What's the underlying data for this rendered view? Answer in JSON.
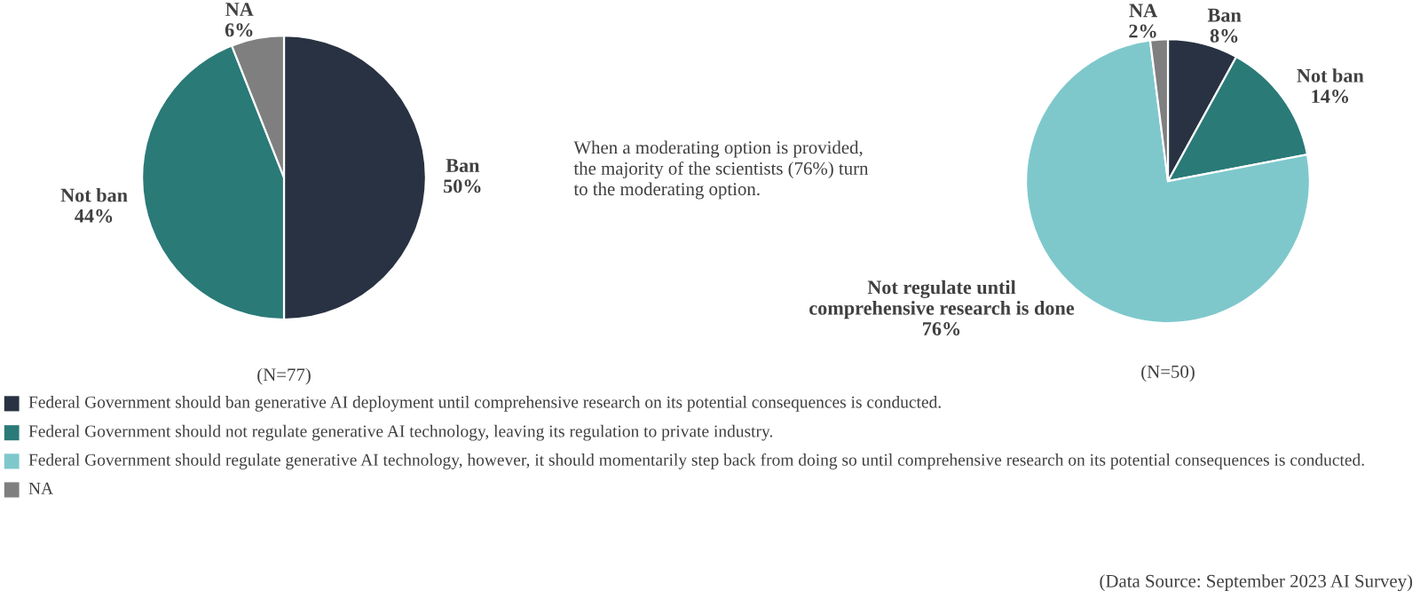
{
  "chart_data": [
    {
      "type": "pie",
      "categories": [
        "Ban",
        "Not ban",
        "NA"
      ],
      "values": [
        50,
        44,
        6
      ],
      "value_labels": [
        "50%",
        "44%",
        "6%"
      ],
      "colors": [
        "#283242",
        "#2a7a78",
        "#7f7f7f"
      ],
      "annotations": [
        "(N=77)"
      ]
    },
    {
      "type": "pie",
      "categories": [
        "Ban",
        "Not ban",
        "Not regulate until\ncomprehensive research is done",
        "NA"
      ],
      "values": [
        8,
        14,
        76,
        2
      ],
      "value_labels": [
        "8%",
        "14%",
        "76%",
        "2%"
      ],
      "colors": [
        "#283242",
        "#2a7a78",
        "#7ec8cc",
        "#7f7f7f"
      ],
      "annotations": [
        "When a moderating option is provided,\nthe majority of the scientists (76%) turn\nto the moderating option.",
        "(N=50)",
        "Federal Government should ban generative AI deployment until comprehensive research on its potential consequences is conducted.",
        "Federal Government should not regulate generative AI technology, leaving its regulation to private industry.",
        "Federal Government should regulate generative AI technology, however, it should momentarily step back from doing so until comprehensive research on its potential consequences is conducted.",
        "NA",
        "(Data Source: September 2023 AI Survey)"
      ]
    }
  ]
}
